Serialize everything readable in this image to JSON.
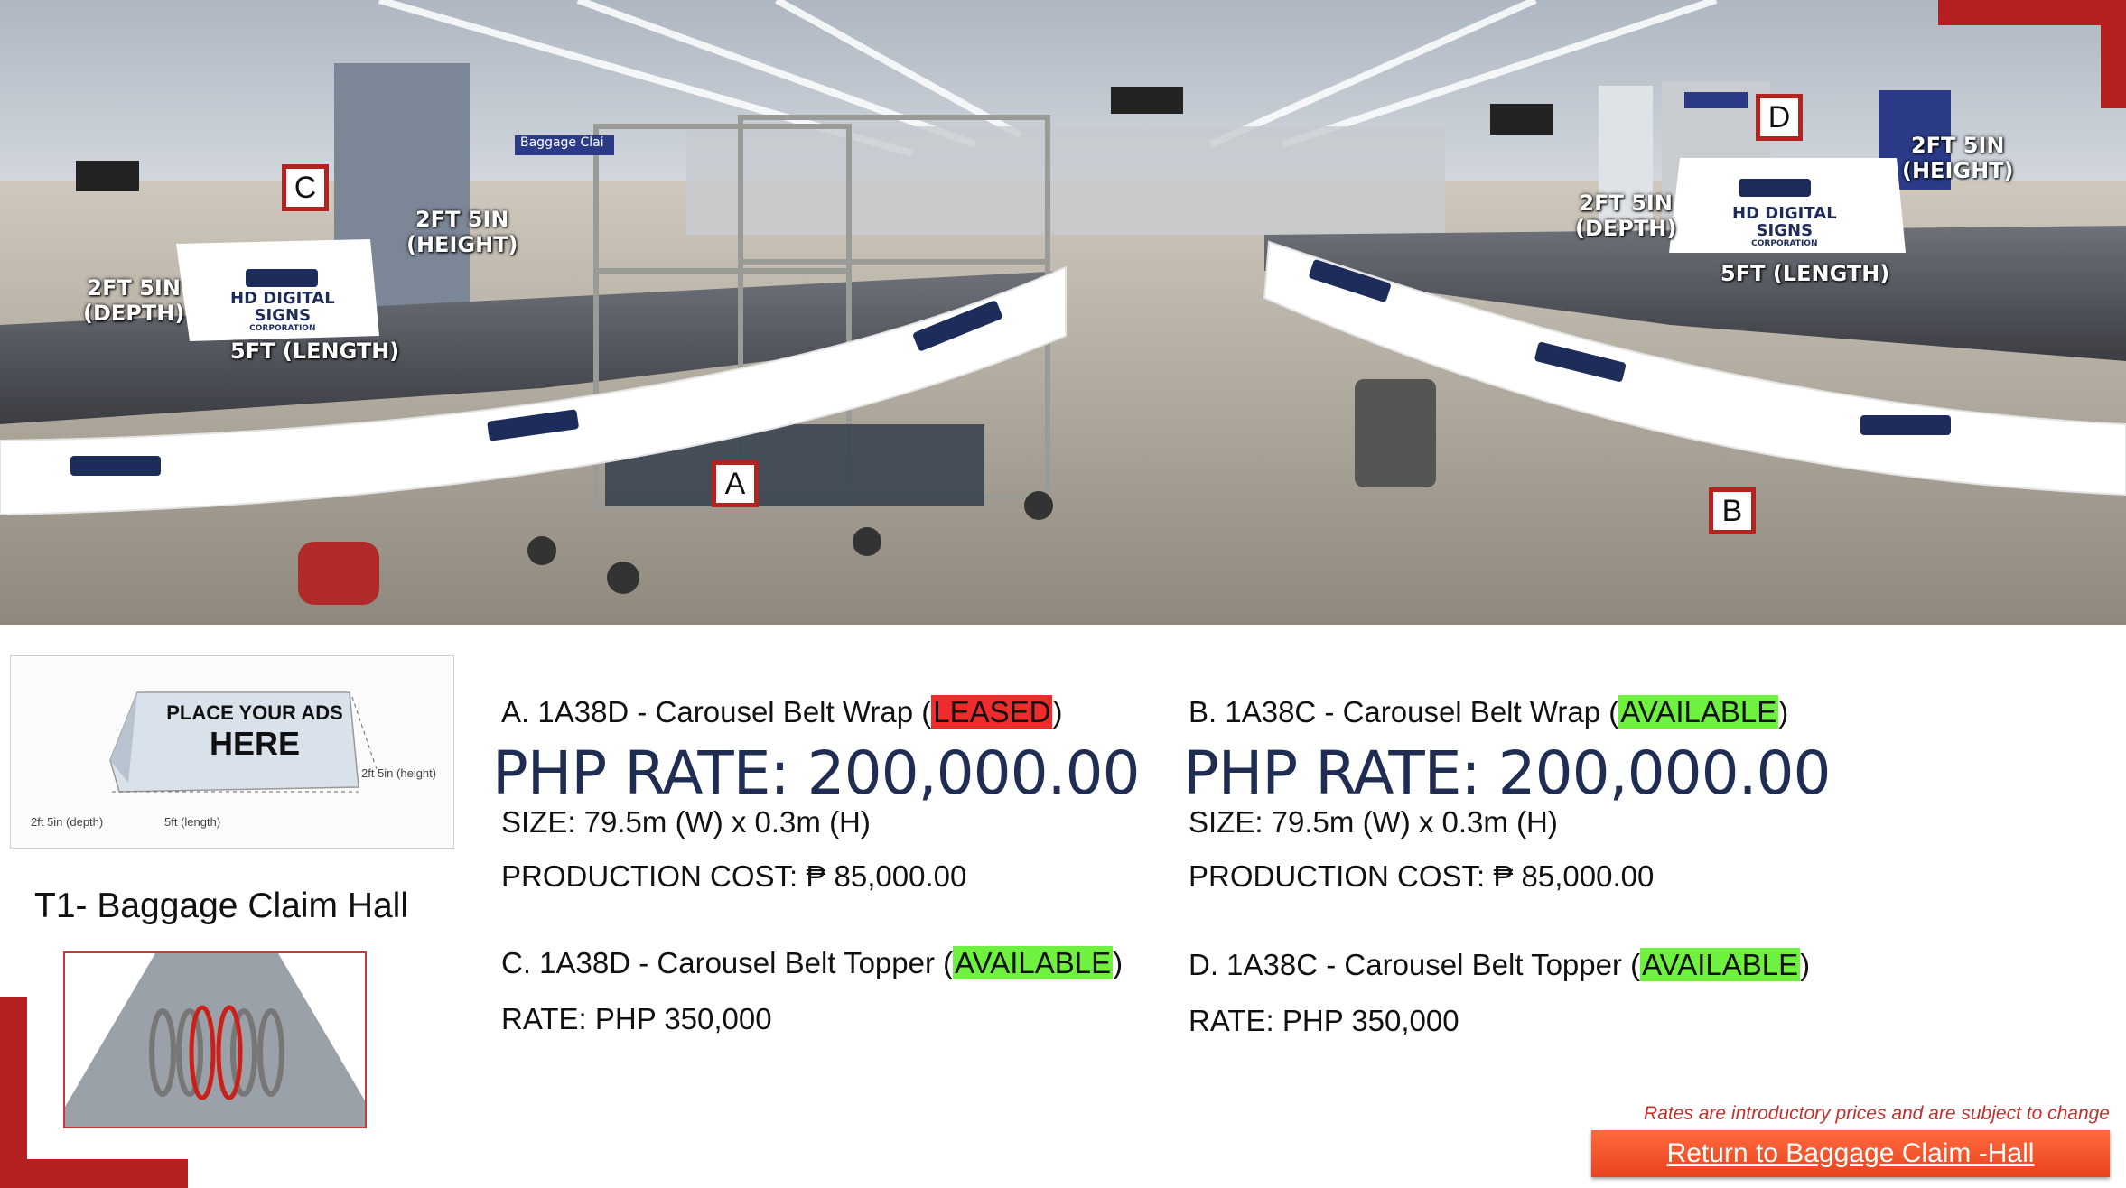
{
  "hero": {
    "markers": [
      "A",
      "B",
      "C",
      "D"
    ],
    "brand_text": [
      "HD DIGITAL",
      "SIGNS",
      "CORPORATION"
    ],
    "sign_board_text": "Baggage Clai",
    "left_dims": {
      "depth": "2FT 5IN\n(DEPTH)",
      "height": "2FT 5IN\n(HEIGHT)",
      "length": "5FT (LENGTH)"
    },
    "right_dims": {
      "depth": "2FT 5IN\n(DEPTH)",
      "height": "2FT 5IN\n(HEIGHT)",
      "length": "5FT (LENGTH)"
    }
  },
  "diagram": {
    "line1": "PLACE YOUR ADS",
    "line2": "HERE",
    "height": "2ft 5in (height)",
    "depth": "2ft 5in (depth)",
    "length": "5ft (length)"
  },
  "location_title": "T1- Baggage Claim Hall",
  "items": {
    "a": {
      "prefix": "A. 1A38D - Carousel Belt Wrap (",
      "status": "LEASED",
      "suffix": ")"
    },
    "a_rate": "PHP RATE: 200,000.00",
    "a_size": "SIZE: 79.5m (W) x 0.3m (H)",
    "a_prod": "PRODUCTION COST: ₱ 85,000.00",
    "b": {
      "prefix": "B. 1A38C - Carousel Belt Wrap (",
      "status": "AVAILABLE",
      "suffix": ")"
    },
    "b_rate": "PHP RATE: 200,000.00",
    "b_size": "SIZE: 79.5m (W) x 0.3m (H)",
    "b_prod": "PRODUCTION COST: ₱ 85,000.00",
    "c": {
      "prefix": "C. 1A38D - Carousel Belt Topper (",
      "status": "AVAILABLE",
      "suffix": ")"
    },
    "c_rate": "RATE: PHP 350,000",
    "d": {
      "prefix": "D. 1A38C - Carousel Belt Topper (",
      "status": "AVAILABLE",
      "suffix": ")"
    },
    "d_rate": "RATE: PHP 350,000"
  },
  "disclaimer": "Rates are introductory prices and are subject to change",
  "return_button": "Return to Baggage Claim -Hall",
  "colors": {
    "accent_red": "#b51f1f",
    "leased": "#ef2b2b",
    "available": "#6ef23f",
    "rate_text": "#1f2d52",
    "button": "#e8431e"
  }
}
